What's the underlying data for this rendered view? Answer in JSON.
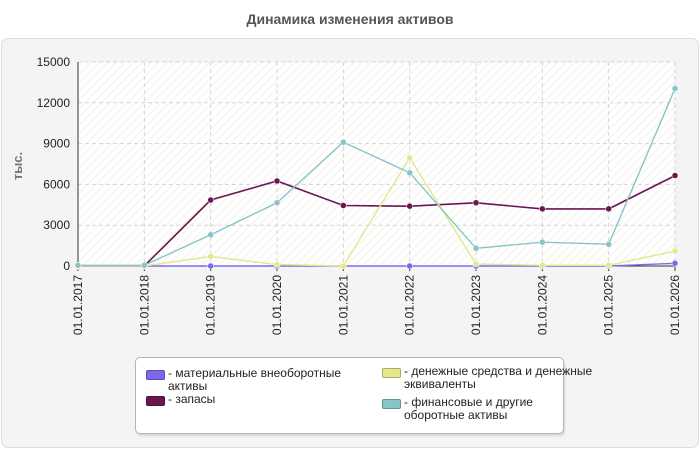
{
  "title": "Динамика изменения активов",
  "legend": {
    "items": [
      {
        "label": "- материальные внеоборотные активы",
        "color": "#7b68ee"
      },
      {
        "label": "- запасы",
        "color": "#6b1651"
      },
      {
        "label": "- денежные средства и денежные эквиваленты",
        "color": "#e6e68c"
      },
      {
        "label": "- финансовые и другие оборотные активы",
        "color": "#88c4c8"
      }
    ]
  },
  "chart_data": {
    "type": "line",
    "title": "Динамика изменения активов",
    "xlabel": "",
    "ylabel": "тыс.",
    "ylim": [
      0,
      15000
    ],
    "yticks": [
      0,
      3000,
      6000,
      9000,
      12000,
      15000
    ],
    "grid": true,
    "legend_position": "bottom",
    "categories": [
      "01.01.2017",
      "01.01.2018",
      "01.01.2019",
      "01.01.2020",
      "01.01.2021",
      "01.01.2022",
      "01.01.2023",
      "01.01.2024",
      "01.01.2025",
      "01.01.2026"
    ],
    "series": [
      {
        "name": "материальные внеоборотные активы",
        "color": "#7b68ee",
        "values": [
          0,
          0,
          0,
          0,
          0,
          0,
          0,
          0,
          0,
          200
        ]
      },
      {
        "name": "запасы",
        "color": "#6b1651",
        "values": [
          0,
          0,
          4850,
          6250,
          4450,
          4400,
          4650,
          4200,
          4200,
          6650
        ]
      },
      {
        "name": "денежные средства и денежные эквиваленты",
        "color": "#e6e68c",
        "values": [
          0,
          0,
          700,
          100,
          0,
          7950,
          150,
          50,
          50,
          1100
        ]
      },
      {
        "name": "финансовые и другие оборотные активы",
        "color": "#88c4c8",
        "values": [
          50,
          50,
          2300,
          4650,
          9100,
          6850,
          1300,
          1750,
          1600,
          13050
        ]
      }
    ]
  }
}
